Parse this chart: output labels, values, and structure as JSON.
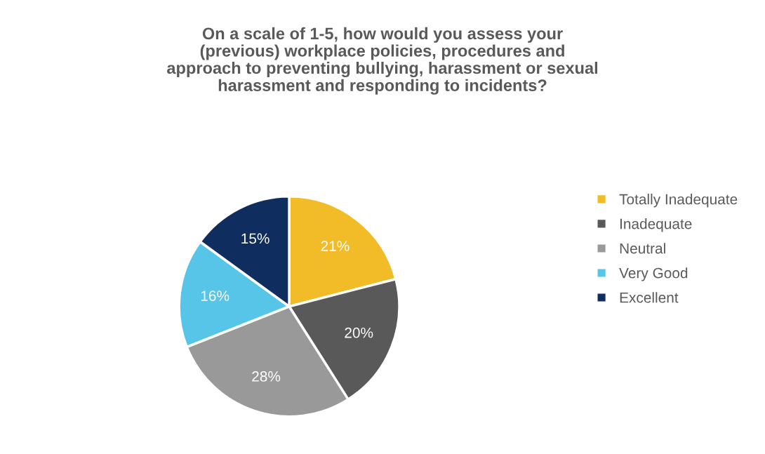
{
  "chart_data": {
    "type": "pie",
    "title": "On a scale of 1-5, how would you assess your\n(previous) workplace policies, procedures and\napproach to preventing bullying, harassment or sexual\nharassment and responding to incidents?",
    "categories": [
      "Totally Inadequate",
      "Inadequate",
      "Neutral",
      "Very Good",
      "Excellent"
    ],
    "values": [
      21,
      20,
      28,
      16,
      15
    ],
    "colors": [
      "#f2bc28",
      "#595959",
      "#999999",
      "#56c5e8",
      "#0f2d5e"
    ],
    "value_labels": [
      "21%",
      "20%",
      "28%",
      "16%",
      "15%"
    ],
    "legend": "right"
  }
}
